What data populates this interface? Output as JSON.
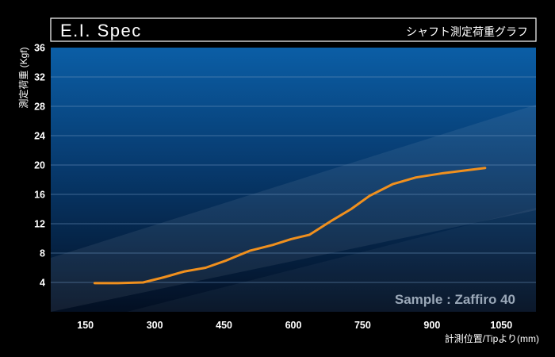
{
  "header": {
    "title": "E.I. Spec",
    "subtitle": "シャフト測定荷重グラフ"
  },
  "chart_data": {
    "type": "line",
    "ylabel": "測定荷重 (Kgf)",
    "xlabel": "計測位置/Tipより(mm)",
    "xlim": [
      75,
      1125
    ],
    "ylim": [
      0,
      36
    ],
    "x_ticks": [
      150,
      300,
      450,
      600,
      750,
      900,
      1050
    ],
    "y_ticks": [
      4,
      8,
      12,
      16,
      20,
      24,
      28,
      32,
      36
    ],
    "grid": true,
    "annotation": "Sample : Zaffiro 40",
    "series": [
      {
        "color": "#f0901e",
        "x": [
          170,
          220,
          275,
          320,
          365,
          410,
          455,
          505,
          555,
          595,
          635,
          685,
          725,
          765,
          815,
          865,
          925,
          965,
          1015
        ],
        "y": [
          3.9,
          3.9,
          4.0,
          4.7,
          5.5,
          6.0,
          7.0,
          8.3,
          9.1,
          9.9,
          10.5,
          12.5,
          14.0,
          15.8,
          17.4,
          18.3,
          18.9,
          19.2,
          19.6
        ]
      }
    ]
  },
  "colors": {
    "background": "#000000",
    "plot_top": "#0a5aa0",
    "plot_bottom": "#04142c",
    "line": "#f0901e",
    "grid": "#6a8fb8",
    "text": "#ffffff",
    "annotation": "#9aa8b8"
  }
}
